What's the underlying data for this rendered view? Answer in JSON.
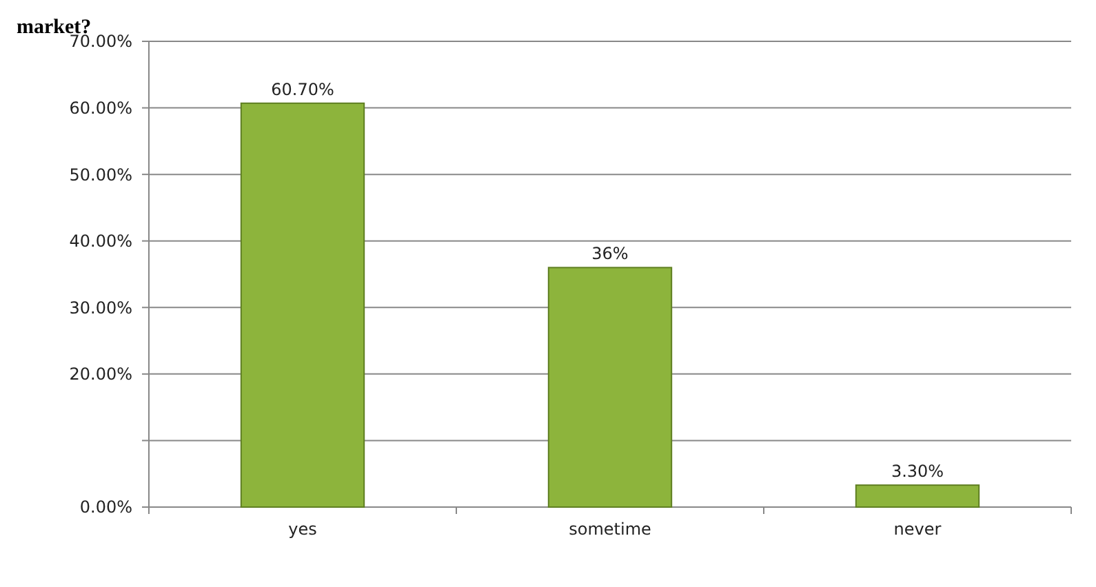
{
  "chart_data": {
    "type": "bar",
    "title": "market?",
    "categories": [
      "yes",
      "sometime",
      "never"
    ],
    "values": [
      60.7,
      36,
      3.3
    ],
    "color": "#8db43c",
    "value_labels": [
      "60.70%",
      "36%",
      "3.30%"
    ],
    "ylim": [
      0,
      70
    ],
    "yticks": [
      {
        "value": 0,
        "label": "0.00%"
      },
      {
        "value": 10,
        "label": null
      },
      {
        "value": 20,
        "label": "20.00%"
      },
      {
        "value": 30,
        "label": "30.00%"
      },
      {
        "value": 40,
        "label": "40.00%"
      },
      {
        "value": 50,
        "label": "50.00%"
      },
      {
        "value": 60,
        "label": "60.00%"
      },
      {
        "value": 70,
        "label": "70.00%"
      }
    ],
    "grid": "y"
  }
}
